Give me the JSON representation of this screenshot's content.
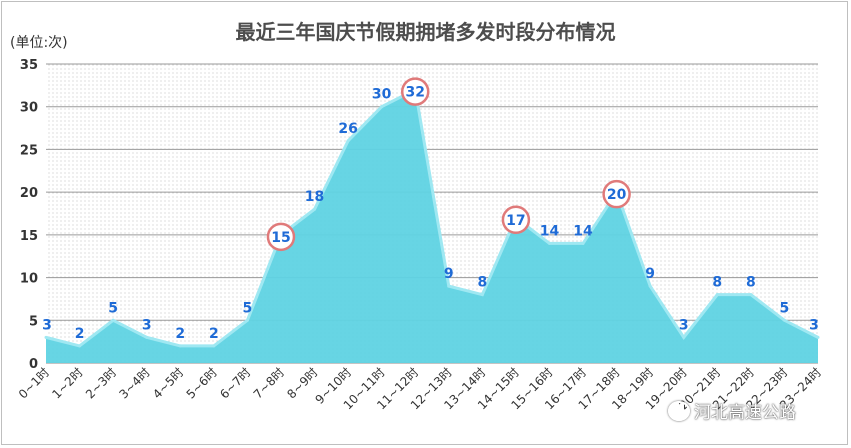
{
  "chart_data": {
    "type": "area",
    "title": "最近三年国庆节假期拥堵多发时段分布情况",
    "unit_label": "(单位:次)",
    "categories": [
      "0~1时",
      "1~2时",
      "2~3时",
      "3~4时",
      "4~5时",
      "5~6时",
      "6~7时",
      "7~8时",
      "8~9时",
      "9~10时",
      "10~11时",
      "11~12时",
      "12~13时",
      "13~14时",
      "14~15时",
      "15~16时",
      "16~17时",
      "17~18时",
      "18~19时",
      "19~20时",
      "20~21时",
      "21~22时",
      "22~23时",
      "23~24时"
    ],
    "values": [
      3,
      2,
      5,
      3,
      2,
      2,
      5,
      15,
      18,
      26,
      30,
      32,
      9,
      8,
      17,
      14,
      14,
      20,
      9,
      3,
      8,
      8,
      5,
      3
    ],
    "highlighted": [
      "7~8时",
      "11~12时",
      "14~15时",
      "17~18时"
    ],
    "ylim": [
      0,
      35
    ],
    "yticks": [
      0,
      5,
      10,
      15,
      20,
      25,
      30,
      35
    ],
    "grid": true,
    "colors": {
      "fill": "#5fd3e3",
      "line": "#9fe8f2",
      "label": "#1f6bd6",
      "circle": "#e07a7a"
    }
  },
  "watermark": "河北高速公路"
}
